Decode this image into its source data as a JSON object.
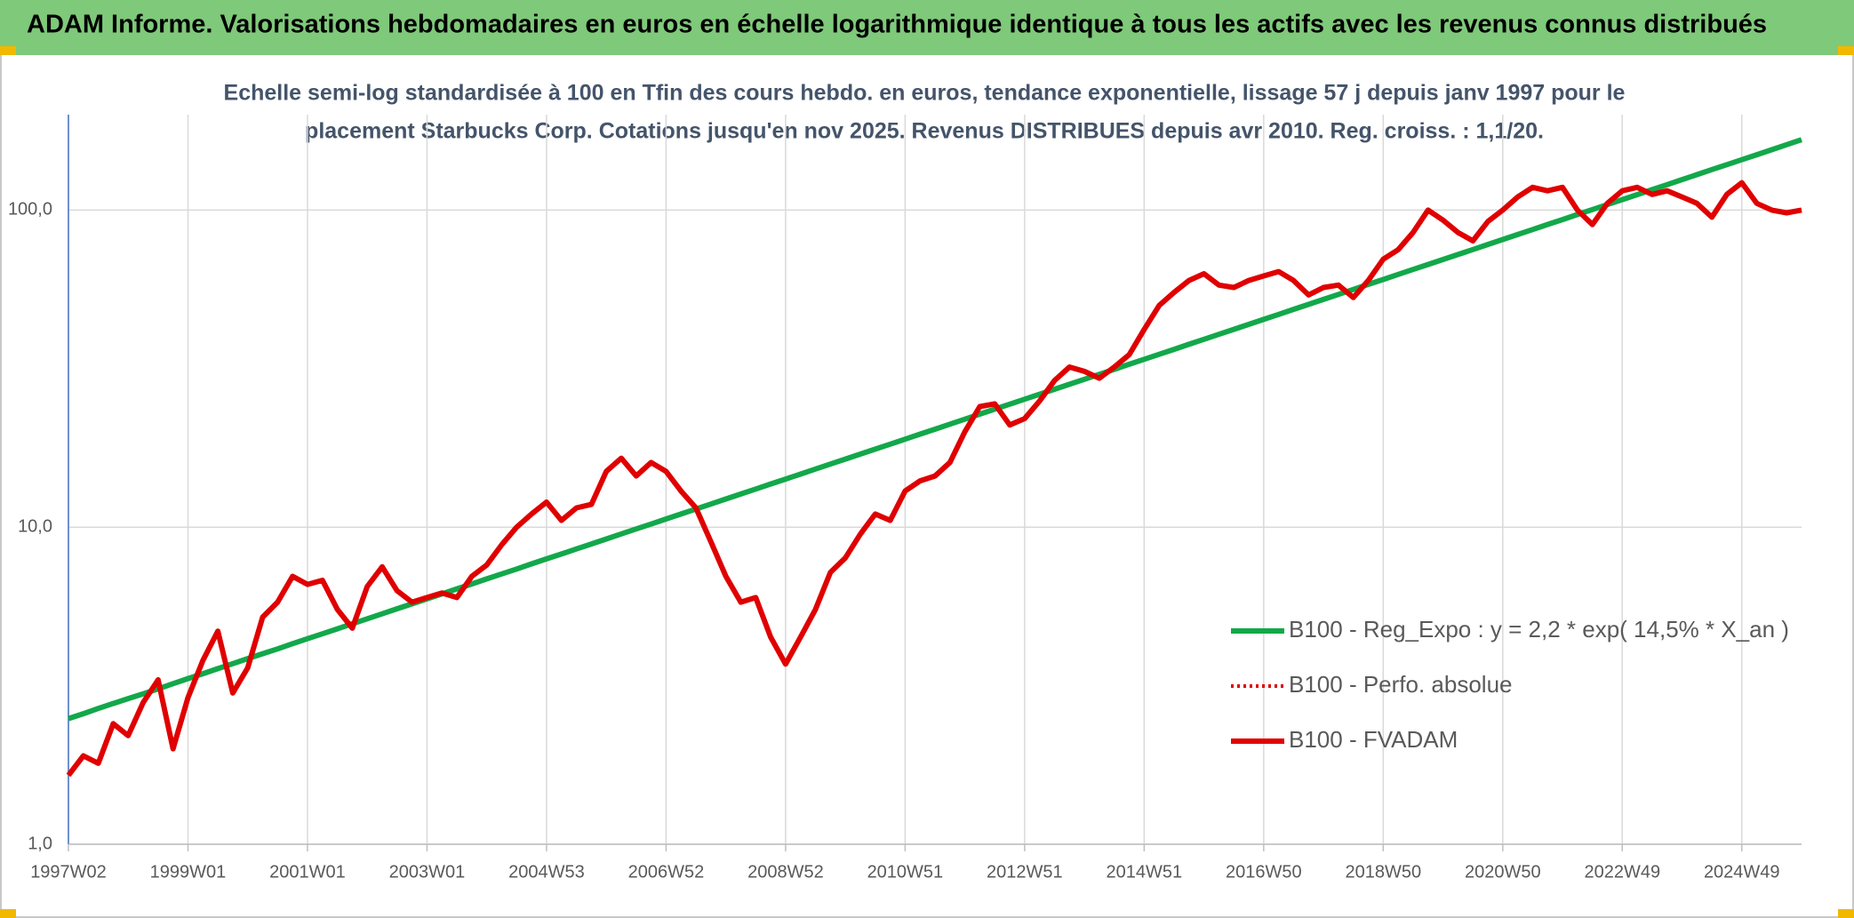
{
  "header": {
    "title": "ADAM Informe. Valorisations hebdomadaires en euros en échelle logarithmique identique à tous les actifs avec les revenus connus distribués"
  },
  "chart_data": {
    "type": "line",
    "subtitle": [
      "Echelle semi-log standardisée à 100 en Tfin des cours hebdo. en euros, tendance exponentielle, lissage 57 j depuis janv 1997 pour le",
      "placement Starbucks Corp. Cotations jusqu'en nov 2025. Revenus DISTRIBUES depuis avr 2010. Reg. croiss. : 1,1/20."
    ],
    "log_scale": true,
    "grid": true,
    "legend": "right",
    "ylim": [
      1,
      200
    ],
    "yticks": [
      {
        "value": 1,
        "label": "1,0"
      },
      {
        "value": 10,
        "label": "10,0"
      },
      {
        "value": 100,
        "label": "100,0"
      }
    ],
    "categories": [
      "1997W02",
      null,
      null,
      null,
      null,
      null,
      null,
      null,
      "1999W01",
      null,
      null,
      null,
      null,
      null,
      null,
      null,
      "2001W01",
      null,
      null,
      null,
      null,
      null,
      null,
      null,
      "2003W01",
      null,
      null,
      null,
      null,
      null,
      null,
      null,
      "2004W53",
      null,
      null,
      null,
      null,
      null,
      null,
      null,
      "2006W52",
      null,
      null,
      null,
      null,
      null,
      null,
      null,
      "2008W52",
      null,
      null,
      null,
      null,
      null,
      null,
      null,
      "2010W51",
      null,
      null,
      null,
      null,
      null,
      null,
      null,
      "2012W51",
      null,
      null,
      null,
      null,
      null,
      null,
      null,
      "2014W51",
      null,
      null,
      null,
      null,
      null,
      null,
      null,
      "2016W50",
      null,
      null,
      null,
      null,
      null,
      null,
      null,
      "2018W50",
      null,
      null,
      null,
      null,
      null,
      null,
      null,
      "2020W50",
      null,
      null,
      null,
      null,
      null,
      null,
      null,
      "2022W49",
      null,
      null,
      null,
      null,
      null,
      null,
      null,
      "2024W49",
      null,
      null,
      null,
      null
    ],
    "series": [
      {
        "name": "B100 - Reg_Expo : y = 2,2 * exp( 14,5% *  X_an )",
        "color": "#12a84a",
        "style": "solid",
        "values": [
          2.49,
          2.58,
          2.68,
          2.78,
          2.88,
          2.98,
          3.09,
          3.21,
          3.33,
          3.45,
          3.58,
          3.71,
          3.85,
          3.99,
          4.13,
          4.29,
          4.45,
          4.61,
          4.78,
          4.96,
          5.14,
          5.33,
          5.53,
          5.73,
          5.94,
          6.16,
          6.39,
          6.62,
          6.87,
          7.12,
          7.38,
          7.66,
          7.94,
          8.23,
          8.54,
          8.85,
          9.18,
          9.52,
          9.87,
          10.23,
          10.61,
          11.0,
          11.41,
          11.83,
          12.27,
          12.72,
          13.19,
          13.68,
          14.18,
          14.7,
          15.25,
          15.81,
          16.39,
          17.0,
          17.62,
          18.27,
          18.95,
          19.65,
          20.37,
          21.13,
          21.91,
          22.72,
          23.56,
          24.43,
          25.32,
          26.26,
          27.22,
          28.23,
          29.27,
          30.35,
          31.47,
          32.64,
          33.84,
          35.09,
          36.38,
          37.73,
          39.12,
          40.57,
          42.06,
          43.62,
          45.22,
          46.89,
          48.62,
          50.42,
          52.28,
          54.21,
          56.21,
          58.29,
          60.43,
          62.66,
          64.97,
          67.38,
          69.86,
          72.44,
          75.11,
          77.89,
          80.76,
          83.74,
          86.83,
          90.05,
          93.36,
          96.81,
          100.4,
          104.1,
          107.9,
          111.9,
          116.0,
          120.3,
          124.8,
          129.4,
          134.2,
          139.1,
          144.2,
          149.5,
          155.0,
          160.8,
          166.7
        ]
      },
      {
        "name": "B100 - Perfo. absolue",
        "color": "#e00000",
        "style": "dotted",
        "values": [
          1.65,
          1.9,
          1.8,
          2.4,
          2.2,
          2.8,
          3.3,
          2.0,
          2.9,
          3.8,
          4.7,
          3.0,
          3.6,
          5.2,
          5.8,
          7.0,
          6.6,
          6.8,
          5.5,
          4.8,
          6.5,
          7.5,
          6.3,
          5.8,
          6.0,
          6.2,
          6.0,
          7.0,
          7.6,
          8.8,
          10.0,
          11.0,
          12.0,
          10.5,
          11.5,
          11.8,
          15.0,
          16.5,
          14.5,
          16.0,
          15.0,
          13.0,
          11.5,
          9.0,
          7.0,
          5.8,
          6.0,
          4.5,
          3.7,
          4.5,
          5.5,
          7.2,
          8.0,
          9.5,
          11.0,
          10.5,
          13.0,
          14.0,
          14.5,
          16.0,
          20.0,
          24.0,
          24.5,
          21.0,
          22.0,
          25.0,
          29.0,
          32.0,
          31.0,
          29.5,
          32.0,
          35.0,
          42.0,
          50.0,
          55.0,
          60.0,
          63.0,
          58.0,
          57.0,
          60.0,
          62.0,
          64.0,
          60.0,
          54.0,
          57.0,
          58.0,
          53.0,
          60.0,
          70.0,
          75.0,
          85.0,
          100.0,
          93.0,
          85.0,
          80.0,
          92.0,
          100.0,
          110.0,
          118.0,
          115.0,
          118.0,
          100.0,
          90.0,
          105.0,
          115.0,
          118.0,
          112.0,
          115.0,
          110.0,
          105.0,
          95.0,
          112.0,
          122.0,
          105.0,
          100.0,
          98.0,
          100.0
        ]
      },
      {
        "name": "B100 - FVADAM",
        "color": "#e00000",
        "style": "solid",
        "values": [
          1.65,
          1.9,
          1.8,
          2.4,
          2.2,
          2.8,
          3.3,
          2.0,
          2.9,
          3.8,
          4.7,
          3.0,
          3.6,
          5.2,
          5.8,
          7.0,
          6.6,
          6.8,
          5.5,
          4.8,
          6.5,
          7.5,
          6.3,
          5.8,
          6.0,
          6.2,
          6.0,
          7.0,
          7.6,
          8.8,
          10.0,
          11.0,
          12.0,
          10.5,
          11.5,
          11.8,
          15.0,
          16.5,
          14.5,
          16.0,
          15.0,
          13.0,
          11.5,
          9.0,
          7.0,
          5.8,
          6.0,
          4.5,
          3.7,
          4.5,
          5.5,
          7.2,
          8.0,
          9.5,
          11.0,
          10.5,
          13.0,
          14.0,
          14.5,
          16.0,
          20.0,
          24.0,
          24.5,
          21.0,
          22.0,
          25.0,
          29.0,
          32.0,
          31.0,
          29.5,
          32.0,
          35.0,
          42.0,
          50.0,
          55.0,
          60.0,
          63.0,
          58.0,
          57.0,
          60.0,
          62.0,
          64.0,
          60.0,
          54.0,
          57.0,
          58.0,
          53.0,
          60.0,
          70.0,
          75.0,
          85.0,
          100.0,
          93.0,
          85.0,
          80.0,
          92.0,
          100.0,
          110.0,
          118.0,
          115.0,
          118.0,
          100.0,
          90.0,
          105.0,
          115.0,
          118.0,
          112.0,
          115.0,
          110.0,
          105.0,
          95.0,
          112.0,
          122.0,
          105.0,
          100.0,
          98.0,
          100.0
        ]
      }
    ]
  }
}
